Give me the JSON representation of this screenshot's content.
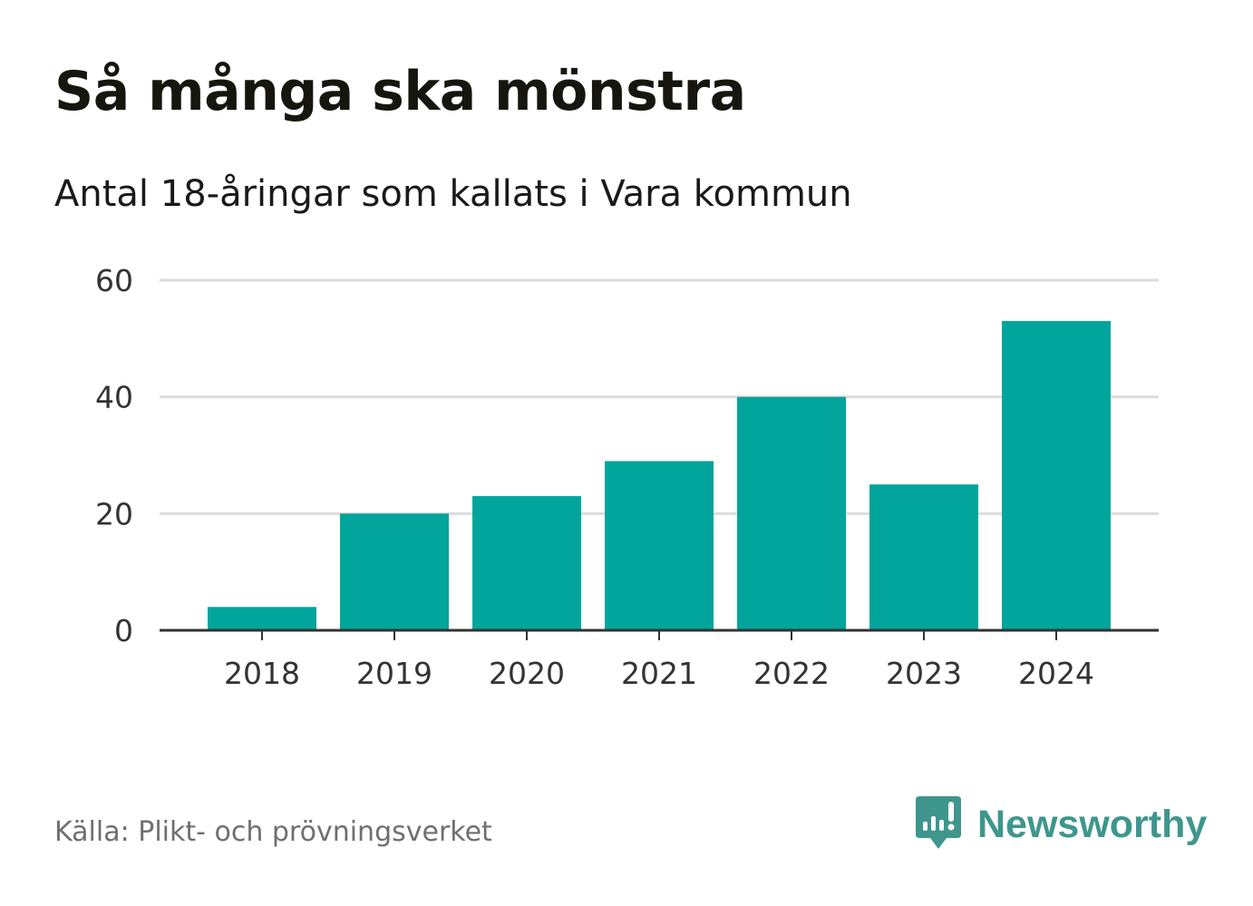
{
  "title": "Så många ska mönstra",
  "subtitle": "Antal 18-åringar som kallats i Vara kommun",
  "source": "Källa: Plikt- och prövningsverket",
  "brand": {
    "name": "Newsworthy",
    "icon": "newsworthy-logo-icon",
    "color": "#3f968c"
  },
  "colors": {
    "bar": "#02a59b",
    "grid": "#dcdcdc",
    "axis": "#333333"
  },
  "chart_data": {
    "type": "bar",
    "title": "Så många ska mönstra",
    "subtitle": "Antal 18-åringar som kallats i Vara kommun",
    "xlabel": "",
    "ylabel": "",
    "categories": [
      "2018",
      "2019",
      "2020",
      "2021",
      "2022",
      "2023",
      "2024"
    ],
    "values": [
      4,
      20,
      23,
      29,
      40,
      25,
      53
    ],
    "ylim": [
      0,
      60
    ],
    "yticks": [
      "0",
      "20",
      "40",
      "60"
    ],
    "grid": true,
    "legend": "none"
  }
}
